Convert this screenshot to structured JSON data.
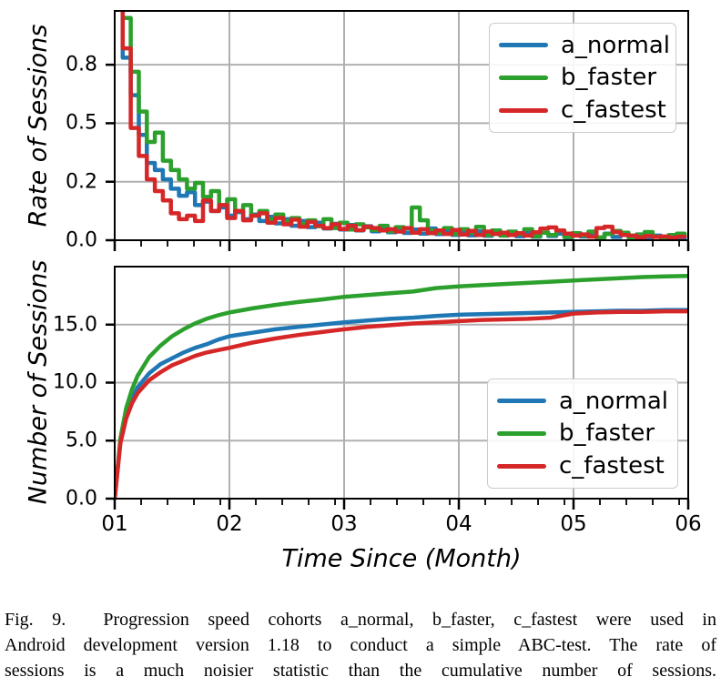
{
  "figure_label": "Fig. 9.",
  "caption": {
    "lines": [
      "Fig. 9.  Progression speed cohorts a_normal, b_faster, c_fastest were used in",
      "Android development version 1.18 to conduct a simple ABC-test. The rate of",
      "sessions is a much noisier statistic than the cumulative number of sessions."
    ]
  },
  "colors": {
    "grid": "#b0b0b0",
    "axis": "#000000",
    "legend_border": "#cccccc"
  },
  "chart_data": [
    {
      "type": "line",
      "subtype": "step",
      "ylabel": "Rate of Sessions",
      "xlim": [
        1,
        6
      ],
      "ylim": [
        0,
        0.98
      ],
      "grid": true,
      "legend_position": "upper right",
      "yticks": [
        {
          "value": 0.0,
          "label": "0.0"
        },
        {
          "value": 0.25,
          "label": "0.2"
        },
        {
          "value": 0.5,
          "label": "0.5"
        },
        {
          "value": 0.75,
          "label": "0.8"
        }
      ],
      "xticks": [
        {
          "value": 1,
          "label": ""
        },
        {
          "value": 2,
          "label": ""
        },
        {
          "value": 3,
          "label": ""
        },
        {
          "value": 4,
          "label": ""
        },
        {
          "value": 5,
          "label": ""
        },
        {
          "value": 6,
          "label": ""
        }
      ],
      "x_step_start": 1.0,
      "x_step": 0.07,
      "series": [
        {
          "name": "a_normal",
          "color": "#1f77b4",
          "values": [
            1.5,
            0.78,
            0.62,
            0.45,
            0.33,
            0.3,
            0.26,
            0.22,
            0.19,
            0.205,
            0.15,
            0.165,
            0.125,
            0.14,
            0.105,
            0.12,
            0.09,
            0.11,
            0.082,
            0.1,
            0.072,
            0.09,
            0.062,
            0.082,
            0.056,
            0.075,
            0.05,
            0.07,
            0.046,
            0.065,
            0.042,
            0.06,
            0.038,
            0.056,
            0.034,
            0.05,
            0.031,
            0.046,
            0.028,
            0.05,
            0.026,
            0.044,
            0.023,
            0.04,
            0.021,
            0.038,
            0.019,
            0.042,
            0.02,
            0.035,
            0.017,
            0.03,
            0.015,
            0.032,
            0.018,
            0.028,
            0.013,
            0.03,
            0.016,
            0.025,
            0.011,
            0.028,
            0.014,
            0.022,
            0.011,
            0.025,
            0.012,
            0.02,
            0.01,
            0.022,
            0.009,
            0.018
          ]
        },
        {
          "name": "b_faster",
          "color": "#2ca02c",
          "values": [
            1.8,
            0.95,
            0.72,
            0.55,
            0.42,
            0.46,
            0.34,
            0.3,
            0.26,
            0.22,
            0.245,
            0.185,
            0.21,
            0.15,
            0.175,
            0.125,
            0.15,
            0.105,
            0.125,
            0.09,
            0.11,
            0.08,
            0.095,
            0.07,
            0.085,
            0.06,
            0.09,
            0.052,
            0.075,
            0.046,
            0.068,
            0.055,
            0.044,
            0.062,
            0.038,
            0.056,
            0.05,
            0.14,
            0.085,
            0.042,
            0.032,
            0.052,
            0.027,
            0.047,
            0.032,
            0.057,
            0.022,
            0.042,
            0.02,
            0.037,
            0.027,
            0.047,
            0.017,
            0.032,
            0.022,
            0.042,
            0.014,
            0.03,
            0.02,
            0.037,
            0.012,
            0.027,
            0.04,
            0.032,
            0.012,
            0.024,
            0.035,
            0.015,
            0.011,
            0.022,
            0.028,
            0.016
          ]
        },
        {
          "name": "c_fastest",
          "color": "#d62728",
          "values": [
            1.4,
            0.82,
            0.48,
            0.36,
            0.26,
            0.21,
            0.17,
            0.115,
            0.09,
            0.105,
            0.082,
            0.17,
            0.125,
            0.15,
            0.095,
            0.125,
            0.085,
            0.105,
            0.115,
            0.075,
            0.095,
            0.068,
            0.088,
            0.058,
            0.078,
            0.062,
            0.052,
            0.068,
            0.048,
            0.062,
            0.043,
            0.058,
            0.052,
            0.042,
            0.047,
            0.037,
            0.052,
            0.032,
            0.047,
            0.03,
            0.042,
            0.027,
            0.044,
            0.024,
            0.04,
            0.022,
            0.037,
            0.027,
            0.032,
            0.022,
            0.03,
            0.02,
            0.034,
            0.05,
            0.055,
            0.042,
            0.028,
            0.02,
            0.025,
            0.015,
            0.052,
            0.058,
            0.035,
            0.022,
            0.02,
            0.012,
            0.018,
            0.014,
            0.016,
            0.011,
            0.015,
            0.011
          ]
        }
      ]
    },
    {
      "type": "line",
      "ylabel": "Number of Sessions",
      "xlabel": "Time Since (Month)",
      "xlim": [
        1,
        6
      ],
      "ylim": [
        0,
        20
      ],
      "grid": true,
      "legend_position": "center right",
      "yticks": [
        {
          "value": 0,
          "label": "0.0"
        },
        {
          "value": 5,
          "label": "5.0"
        },
        {
          "value": 10,
          "label": "10.0"
        },
        {
          "value": 15,
          "label": "15.0"
        }
      ],
      "xticks": [
        {
          "value": 1,
          "label": "01"
        },
        {
          "value": 2,
          "label": "02"
        },
        {
          "value": 3,
          "label": "03"
        },
        {
          "value": 4,
          "label": "04"
        },
        {
          "value": 5,
          "label": "05"
        },
        {
          "value": 6,
          "label": "06"
        }
      ],
      "x": [
        1.0,
        1.05,
        1.1,
        1.15,
        1.2,
        1.3,
        1.4,
        1.5,
        1.6,
        1.7,
        1.8,
        1.9,
        2.0,
        2.2,
        2.4,
        2.6,
        2.8,
        3.0,
        3.2,
        3.4,
        3.6,
        3.8,
        4.0,
        4.2,
        4.4,
        4.6,
        4.8,
        5.0,
        5.2,
        5.4,
        5.6,
        5.8,
        6.0
      ],
      "series": [
        {
          "name": "a_normal",
          "color": "#1f77b4",
          "values": [
            0,
            5.0,
            7.2,
            8.6,
            9.6,
            10.8,
            11.6,
            12.1,
            12.6,
            13.0,
            13.3,
            13.7,
            14.0,
            14.3,
            14.6,
            14.8,
            15.0,
            15.2,
            15.35,
            15.5,
            15.6,
            15.75,
            15.85,
            15.9,
            15.95,
            16.0,
            16.05,
            16.1,
            16.15,
            16.2,
            16.2,
            16.25,
            16.25
          ]
        },
        {
          "name": "b_faster",
          "color": "#2ca02c",
          "values": [
            0,
            5.2,
            7.8,
            9.4,
            10.6,
            12.2,
            13.2,
            14.0,
            14.6,
            15.1,
            15.5,
            15.8,
            16.05,
            16.4,
            16.7,
            16.95,
            17.15,
            17.4,
            17.55,
            17.7,
            17.85,
            18.15,
            18.3,
            18.4,
            18.5,
            18.6,
            18.7,
            18.8,
            18.9,
            19.0,
            19.1,
            19.15,
            19.2
          ]
        },
        {
          "name": "c_fastest",
          "color": "#d62728",
          "values": [
            0,
            4.8,
            6.9,
            8.2,
            9.1,
            10.2,
            10.9,
            11.5,
            11.9,
            12.3,
            12.6,
            12.8,
            13.0,
            13.45,
            13.8,
            14.1,
            14.35,
            14.6,
            14.8,
            14.95,
            15.1,
            15.2,
            15.3,
            15.4,
            15.45,
            15.5,
            15.6,
            15.95,
            16.05,
            16.1,
            16.1,
            16.15,
            16.15
          ]
        }
      ]
    }
  ]
}
